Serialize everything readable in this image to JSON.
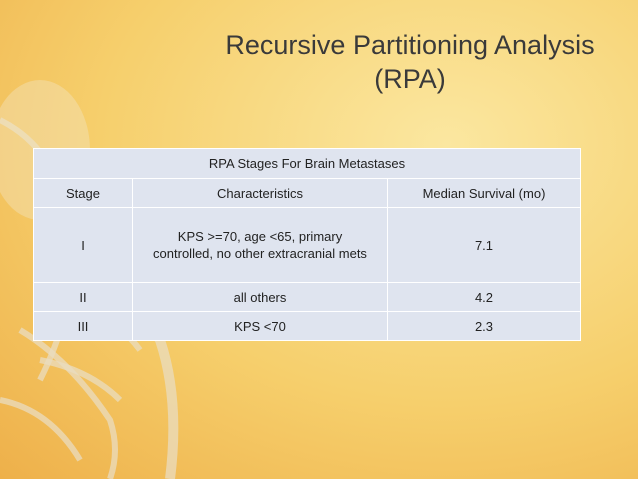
{
  "slide": {
    "title_lines": [
      "Recursive Partitioning Analysis",
      "(RPA)"
    ]
  },
  "table": {
    "caption": "RPA Stages For Brain Metastases",
    "header": [
      "Stage",
      "Characteristics",
      "Median Survival (mo)"
    ],
    "rows": [
      [
        "I",
        "KPS >=70, age <65, primary controlled, no other extracranial mets",
        "7.1"
      ],
      [
        "II",
        "all others",
        "4.2"
      ],
      [
        "III",
        "KPS <70",
        "2.3"
      ]
    ]
  }
}
